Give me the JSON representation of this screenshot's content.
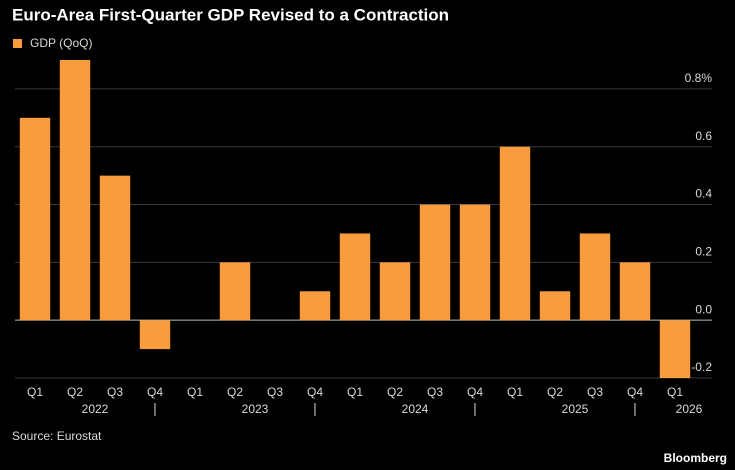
{
  "chart_data": {
    "type": "bar",
    "title": "Euro-Area First-Quarter GDP Revised to a Contraction",
    "series": [
      {
        "name": "GDP (QoQ)",
        "color": "#f89c3e",
        "values": [
          0.7,
          0.9,
          0.5,
          -0.1,
          0,
          0.2,
          0,
          0.1,
          0.3,
          0.2,
          0.4,
          0.4,
          0.6,
          0.1,
          0.3,
          0.2,
          -0.2
        ]
      }
    ],
    "categories": [
      "Q1",
      "Q2",
      "Q3",
      "Q4",
      "Q1",
      "Q2",
      "Q3",
      "Q4",
      "Q1",
      "Q2",
      "Q3",
      "Q4",
      "Q1",
      "Q2",
      "Q3",
      "Q4",
      "Q1"
    ],
    "year_groups": [
      "2022",
      "2023",
      "2024",
      "2025",
      "2026"
    ],
    "ylim": [
      -0.2,
      0.9
    ],
    "yticks": [
      -0.2,
      {
        "value": 0,
        "label": "0.0"
      },
      0.2,
      0.4,
      0.6,
      {
        "value": 0.8,
        "label": "0.8%"
      }
    ],
    "grid": true,
    "source": "Source: Eurostat",
    "credit": "Bloomberg"
  }
}
